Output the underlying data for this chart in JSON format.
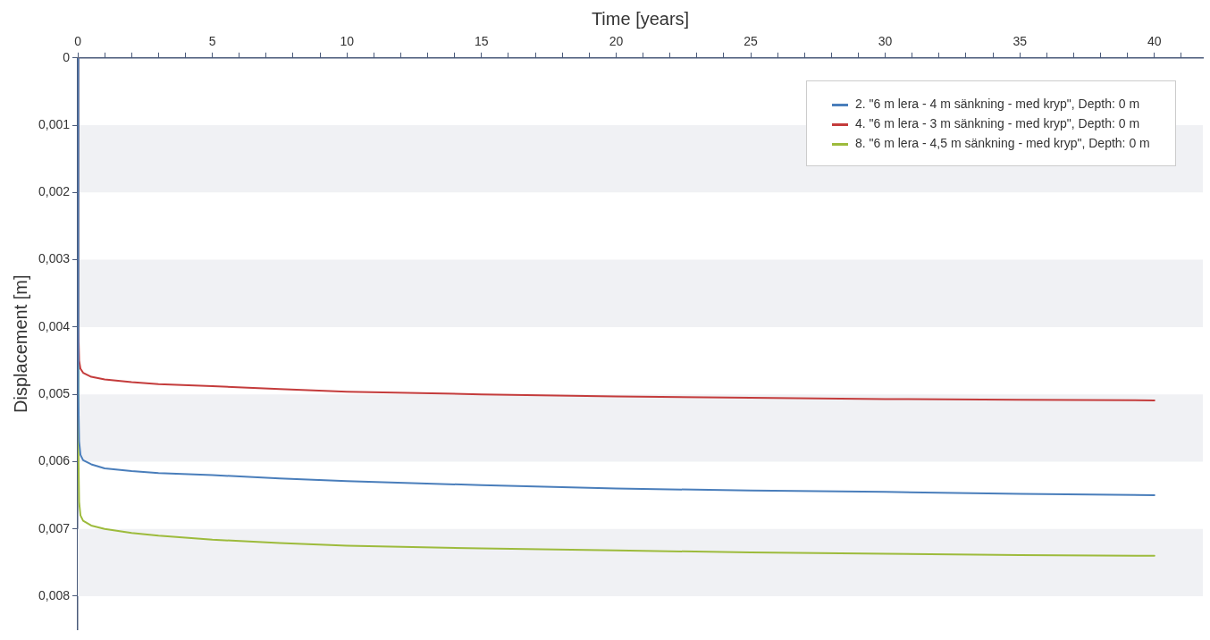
{
  "chart_data": {
    "type": "line",
    "xlabel": "Time [years]",
    "ylabel": "Displacement [m]",
    "legend": "top right",
    "grid": false,
    "marker": "none",
    "line_style": "solid",
    "xlim": [
      0,
      41.8
    ],
    "xticks": [
      0,
      {
        "value": 1,
        "label": null
      },
      {
        "value": 2,
        "label": null
      },
      {
        "value": 3,
        "label": null
      },
      {
        "value": 4,
        "label": null
      },
      5,
      {
        "value": 6,
        "label": null
      },
      {
        "value": 7,
        "label": null
      },
      {
        "value": 8,
        "label": null
      },
      {
        "value": 9,
        "label": null
      },
      10,
      {
        "value": 11,
        "label": null
      },
      {
        "value": 12,
        "label": null
      },
      {
        "value": 13,
        "label": null
      },
      {
        "value": 14,
        "label": null
      },
      15,
      {
        "value": 16,
        "label": null
      },
      {
        "value": 17,
        "label": null
      },
      {
        "value": 18,
        "label": null
      },
      {
        "value": 19,
        "label": null
      },
      20,
      {
        "value": 21,
        "label": null
      },
      {
        "value": 22,
        "label": null
      },
      {
        "value": 23,
        "label": null
      },
      {
        "value": 24,
        "label": null
      },
      25,
      {
        "value": 26,
        "label": null
      },
      {
        "value": 27,
        "label": null
      },
      {
        "value": 28,
        "label": null
      },
      {
        "value": 29,
        "label": null
      },
      30,
      {
        "value": 31,
        "label": null
      },
      {
        "value": 32,
        "label": null
      },
      {
        "value": 33,
        "label": null
      },
      {
        "value": 34,
        "label": null
      },
      35,
      {
        "value": 36,
        "label": null
      },
      {
        "value": 37,
        "label": null
      },
      {
        "value": 38,
        "label": null
      },
      {
        "value": 39,
        "label": null
      },
      40,
      {
        "value": 41,
        "label": null
      }
    ],
    "ylim": [
      0.0085,
      0
    ],
    "yticks": [
      0,
      {
        "value": 0.001,
        "label": "0,001"
      },
      {
        "value": 0.002,
        "label": "0,002"
      },
      {
        "value": 0.003,
        "label": "0,003"
      },
      {
        "value": 0.004,
        "label": "0,004"
      },
      {
        "value": 0.005,
        "label": "0,005"
      },
      {
        "value": 0.006,
        "label": "0,006"
      },
      {
        "value": 0.007,
        "label": "0,007"
      },
      {
        "value": 0.008,
        "label": "0,008"
      }
    ],
    "bands": [
      {
        "axis": "y",
        "from": 0.001,
        "to": 0.002,
        "color": "#f0f1f4"
      },
      {
        "axis": "y",
        "from": 0.003,
        "to": 0.004,
        "color": "#f0f1f4"
      },
      {
        "axis": "y",
        "from": 0.005,
        "to": 0.006,
        "color": "#f0f1f4"
      },
      {
        "axis": "y",
        "from": 0.007,
        "to": 0.008,
        "color": "#f0f1f4"
      }
    ],
    "x": [
      0,
      0.02,
      0.05,
      0.1,
      0.2,
      0.5,
      1,
      2,
      3,
      5,
      7.5,
      10,
      15,
      20,
      25,
      30,
      35,
      40
    ],
    "series": [
      {
        "name": "2. \"6 m lera - 4 m sänkning - med kryp\", Depth: 0 m",
        "color": "#4a7ebb",
        "values": [
          0,
          0.005,
          0.0057,
          0.0059,
          0.00598,
          0.00604,
          0.0061,
          0.00614,
          0.00617,
          0.0062,
          0.00625,
          0.00629,
          0.00635,
          0.0064,
          0.00643,
          0.00645,
          0.00648,
          0.0065
        ]
      },
      {
        "name": "4. \"6 m lera - 3 m sänkning - med kryp\", Depth: 0 m",
        "color": "#c43c3c",
        "values": [
          0,
          0.004,
          0.0045,
          0.00462,
          0.00468,
          0.00474,
          0.00478,
          0.00482,
          0.00485,
          0.00488,
          0.00492,
          0.00496,
          0.005,
          0.00503,
          0.00505,
          0.00507,
          0.00508,
          0.00509
        ]
      },
      {
        "name": "8. \"6 m lera - 4,5 m sänkning - med kryp\", Depth: 0 m",
        "color": "#9dbb3c",
        "values": [
          0,
          0.0058,
          0.0066,
          0.0068,
          0.00688,
          0.00695,
          0.007,
          0.00706,
          0.0071,
          0.00716,
          0.00721,
          0.00725,
          0.00729,
          0.00732,
          0.00735,
          0.00737,
          0.00739,
          0.0074
        ]
      }
    ]
  }
}
